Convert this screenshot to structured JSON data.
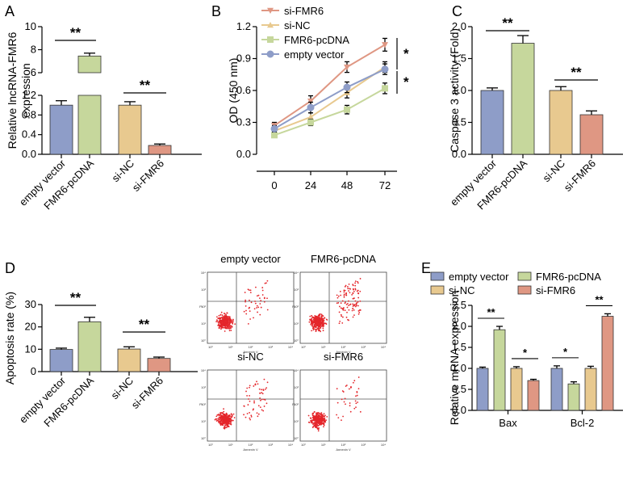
{
  "colors": {
    "empty_vector": "#8e9dc8",
    "fmr6_pcdna": "#c6d79c",
    "si_nc": "#e8c98f",
    "si_fmr6": "#df9783",
    "dots": "#e4262b"
  },
  "chart_data": [
    {
      "id": "A",
      "panel_label": "A",
      "type": "bar",
      "axis_break": true,
      "ylabel_lines": [
        "Relative lncRNA-FMR6",
        "expression"
      ],
      "categories": [
        "empty vector",
        "FMR6-pcDNA",
        "si-NC",
        "si-FMR6"
      ],
      "values": [
        1.0,
        7.45,
        1.0,
        0.18
      ],
      "errors": [
        0.09,
        0.25,
        0.07,
        0.03
      ],
      "lower_ticks": [
        "0.0",
        "0.4",
        "0.8",
        "1.2"
      ],
      "upper_ticks": [
        "6",
        "8",
        "10"
      ],
      "significance": [
        {
          "pair": [
            0,
            1
          ],
          "label": "**"
        },
        {
          "pair": [
            2,
            3
          ],
          "label": "**"
        }
      ]
    },
    {
      "id": "B",
      "panel_label": "B",
      "type": "line",
      "ylabel": "OD (450 nm)",
      "x": [
        0,
        24,
        48,
        72
      ],
      "x_ticks": [
        "0",
        "24",
        "48",
        "72"
      ],
      "y_ticks": [
        "0.0",
        "0.3",
        "0.6",
        "0.9",
        "1.2"
      ],
      "ylim": [
        0,
        1.2
      ],
      "series": [
        {
          "name": "si-FMR6",
          "values": [
            0.27,
            0.5,
            0.82,
            1.03
          ],
          "errors": [
            0.03,
            0.05,
            0.05,
            0.06
          ]
        },
        {
          "name": "si-NC",
          "values": [
            0.22,
            0.35,
            0.58,
            0.82
          ],
          "errors": [
            0.03,
            0.04,
            0.05,
            0.05
          ]
        },
        {
          "name": "FMR6-pcDNA",
          "values": [
            0.18,
            0.3,
            0.42,
            0.62
          ],
          "errors": [
            0.02,
            0.03,
            0.04,
            0.05
          ]
        },
        {
          "name": "empty vector",
          "values": [
            0.24,
            0.44,
            0.63,
            0.8
          ],
          "errors": [
            0.03,
            0.05,
            0.05,
            0.05
          ]
        }
      ],
      "significance": [
        "*",
        "*"
      ]
    },
    {
      "id": "C",
      "panel_label": "C",
      "type": "bar",
      "ylabel": "Caspase 3 activity (Fold)",
      "categories": [
        "empty vector",
        "FMR6-pcDNA",
        "si-NC",
        "si-FMR6"
      ],
      "values": [
        1.0,
        1.74,
        1.0,
        0.62
      ],
      "errors": [
        0.04,
        0.12,
        0.06,
        0.06
      ],
      "y_ticks": [
        "0.0",
        "0.5",
        "1.0",
        "1.5",
        "2.0"
      ],
      "ylim": [
        0,
        2.0
      ],
      "significance": [
        {
          "pair": [
            0,
            1
          ],
          "label": "**"
        },
        {
          "pair": [
            2,
            3
          ],
          "label": "**"
        }
      ]
    },
    {
      "id": "D",
      "panel_label": "D",
      "type": "bar",
      "ylabel": "Apoptosis rate (%)",
      "categories": [
        "empty vector",
        "FMR6-pcDNA",
        "si-NC",
        "si-FMR6"
      ],
      "values": [
        9.9,
        22.3,
        10.1,
        5.9
      ],
      "errors": [
        0.6,
        2.0,
        1.0,
        0.6
      ],
      "y_ticks": [
        "0",
        "10",
        "20",
        "30"
      ],
      "ylim": [
        0,
        30
      ],
      "significance": [
        {
          "pair": [
            0,
            1
          ],
          "label": "**"
        },
        {
          "pair": [
            2,
            3
          ],
          "label": "**"
        }
      ]
    },
    {
      "id": "E",
      "panel_label": "E",
      "type": "bar",
      "ylabel": "Relative mRNA expression",
      "categories": [
        "Bax",
        "Bcl-2"
      ],
      "series": [
        {
          "name": "empty vector",
          "values": [
            1.0,
            1.0
          ],
          "errors": [
            0.03,
            0.06
          ]
        },
        {
          "name": "FMR6-pcDNA",
          "values": [
            1.92,
            0.63
          ],
          "errors": [
            0.08,
            0.05
          ]
        },
        {
          "name": "si-NC",
          "values": [
            1.0,
            1.0
          ],
          "errors": [
            0.04,
            0.05
          ]
        },
        {
          "name": "si-FMR6",
          "values": [
            0.71,
            2.24
          ],
          "errors": [
            0.03,
            0.06
          ]
        }
      ],
      "y_ticks": [
        "0.0",
        "0.5",
        "1.0",
        "1.5",
        "2.0",
        "2.5"
      ],
      "ylim": [
        0,
        2.5
      ],
      "significance": [
        {
          "group": 0,
          "pair": [
            0,
            1
          ],
          "label": "**"
        },
        {
          "group": 0,
          "pair": [
            2,
            3
          ],
          "label": "*"
        },
        {
          "group": 1,
          "pair": [
            0,
            1
          ],
          "label": "*"
        },
        {
          "group": 1,
          "pair": [
            2,
            3
          ],
          "label": "**"
        }
      ]
    }
  ],
  "flow_panels": {
    "titles": [
      "empty vector",
      "FMR6-pcDNA",
      "si-NC",
      "si-FMR6"
    ],
    "x_axis_label": "Annexin V",
    "y_axis_label": "PI",
    "tick_labels": [
      "10⁰",
      "10¹",
      "10²",
      "10³",
      "10⁴"
    ]
  }
}
